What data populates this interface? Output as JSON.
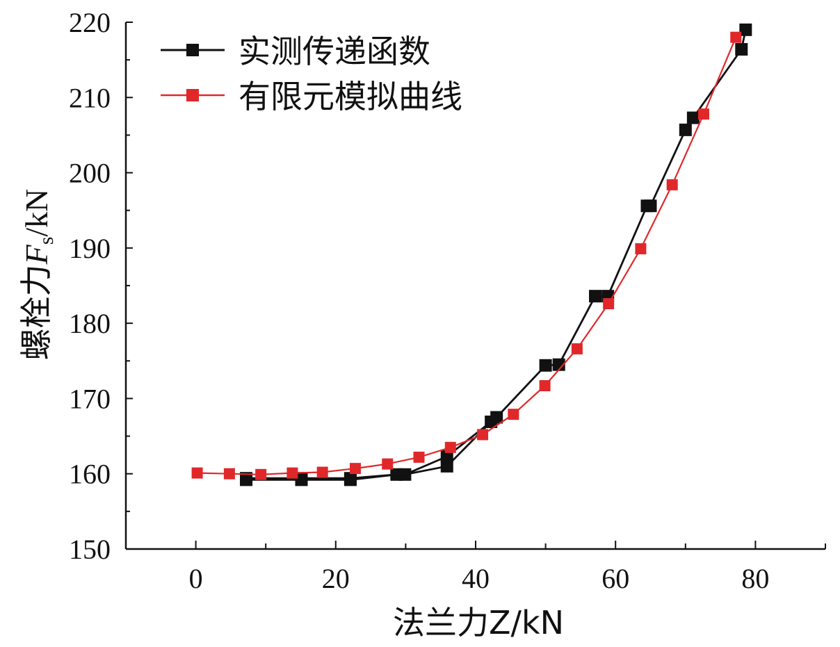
{
  "chart_data": {
    "type": "line",
    "xlabel": "法兰力Z/kN",
    "ylabel_main": "螺栓力",
    "ylabel_var": "F",
    "ylabel_sub": "s",
    "ylabel_unit": "/kN",
    "xlim": [
      -10,
      90
    ],
    "ylim": [
      150,
      220
    ],
    "xticks": [
      0,
      20,
      40,
      60,
      80
    ],
    "yticks": [
      150,
      160,
      170,
      180,
      190,
      200,
      210,
      220
    ],
    "legend_position": "top-left",
    "series": [
      {
        "name": "实测传递函数",
        "color": "#111111",
        "x": [
          7.2,
          15.1,
          22.1,
          28.7,
          29.9,
          35.9,
          42.2,
          43.0,
          50.0,
          51.9,
          57.1,
          58.9,
          64.5,
          65.0,
          70.0,
          71.1,
          78.0,
          78.6,
          78.6,
          78.0,
          71.1,
          70.0,
          65.0,
          64.5,
          58.9,
          57.1,
          51.9,
          50.0,
          43.0,
          42.2,
          35.9,
          29.9,
          28.7,
          22.1,
          15.1,
          7.2
        ],
        "y": [
          159.2,
          159.2,
          159.2,
          159.9,
          159.9,
          161.0,
          166.9,
          167.5,
          174.4,
          174.5,
          183.6,
          183.6,
          195.6,
          195.6,
          205.7,
          207.3,
          216.4,
          219.0,
          219.0,
          216.4,
          207.3,
          205.7,
          195.6,
          195.6,
          183.6,
          183.6,
          174.5,
          174.4,
          167.5,
          166.9,
          162.3,
          159.9,
          159.9,
          159.4,
          159.4,
          159.4
        ]
      },
      {
        "name": "有限元模拟曲线",
        "color": "#e0282a",
        "x": [
          0.2,
          4.8,
          9.3,
          13.8,
          18.1,
          22.8,
          27.4,
          31.9,
          36.4,
          41.0,
          45.4,
          49.9,
          54.5,
          59.0,
          63.6,
          68.1,
          72.6,
          77.2
        ],
        "y": [
          160.1,
          160.0,
          159.9,
          160.1,
          160.2,
          160.7,
          161.3,
          162.2,
          163.5,
          165.2,
          167.9,
          171.7,
          176.6,
          182.6,
          189.9,
          198.4,
          207.8,
          218.0
        ]
      }
    ]
  }
}
